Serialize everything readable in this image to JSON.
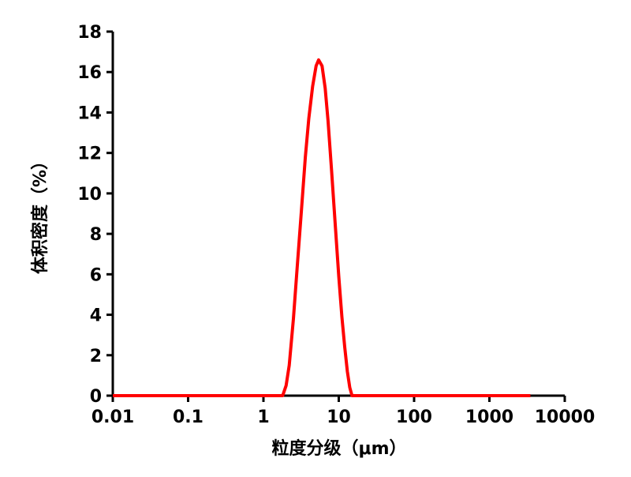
{
  "chart_data": {
    "type": "line",
    "x_label": "粒度分级（μm）",
    "y_label": "体积密度（%）",
    "x_scale": "log",
    "xlim": [
      0.01,
      10000
    ],
    "xticks": [
      0.01,
      0.1,
      1,
      10,
      100,
      1000,
      10000
    ],
    "ylim": [
      0,
      18
    ],
    "yticks": [
      0,
      2,
      4,
      6,
      8,
      10,
      12,
      14,
      16,
      18
    ],
    "series": [
      {
        "color": "#ff0000",
        "x": [
          0.01,
          1.8,
          2.0,
          2.2,
          2.5,
          2.8,
          3.2,
          3.6,
          4.0,
          4.5,
          5.0,
          5.4,
          6.0,
          6.6,
          7.2,
          8.0,
          9.0,
          10,
          11,
          12,
          13,
          14,
          15,
          3500
        ],
        "values": [
          0,
          0,
          0.5,
          1.5,
          3.8,
          6.3,
          9.2,
          11.8,
          13.7,
          15.3,
          16.3,
          16.6,
          16.3,
          15.2,
          13.6,
          11.2,
          8.4,
          5.9,
          3.9,
          2.4,
          1.2,
          0.4,
          0,
          0
        ]
      }
    ]
  }
}
